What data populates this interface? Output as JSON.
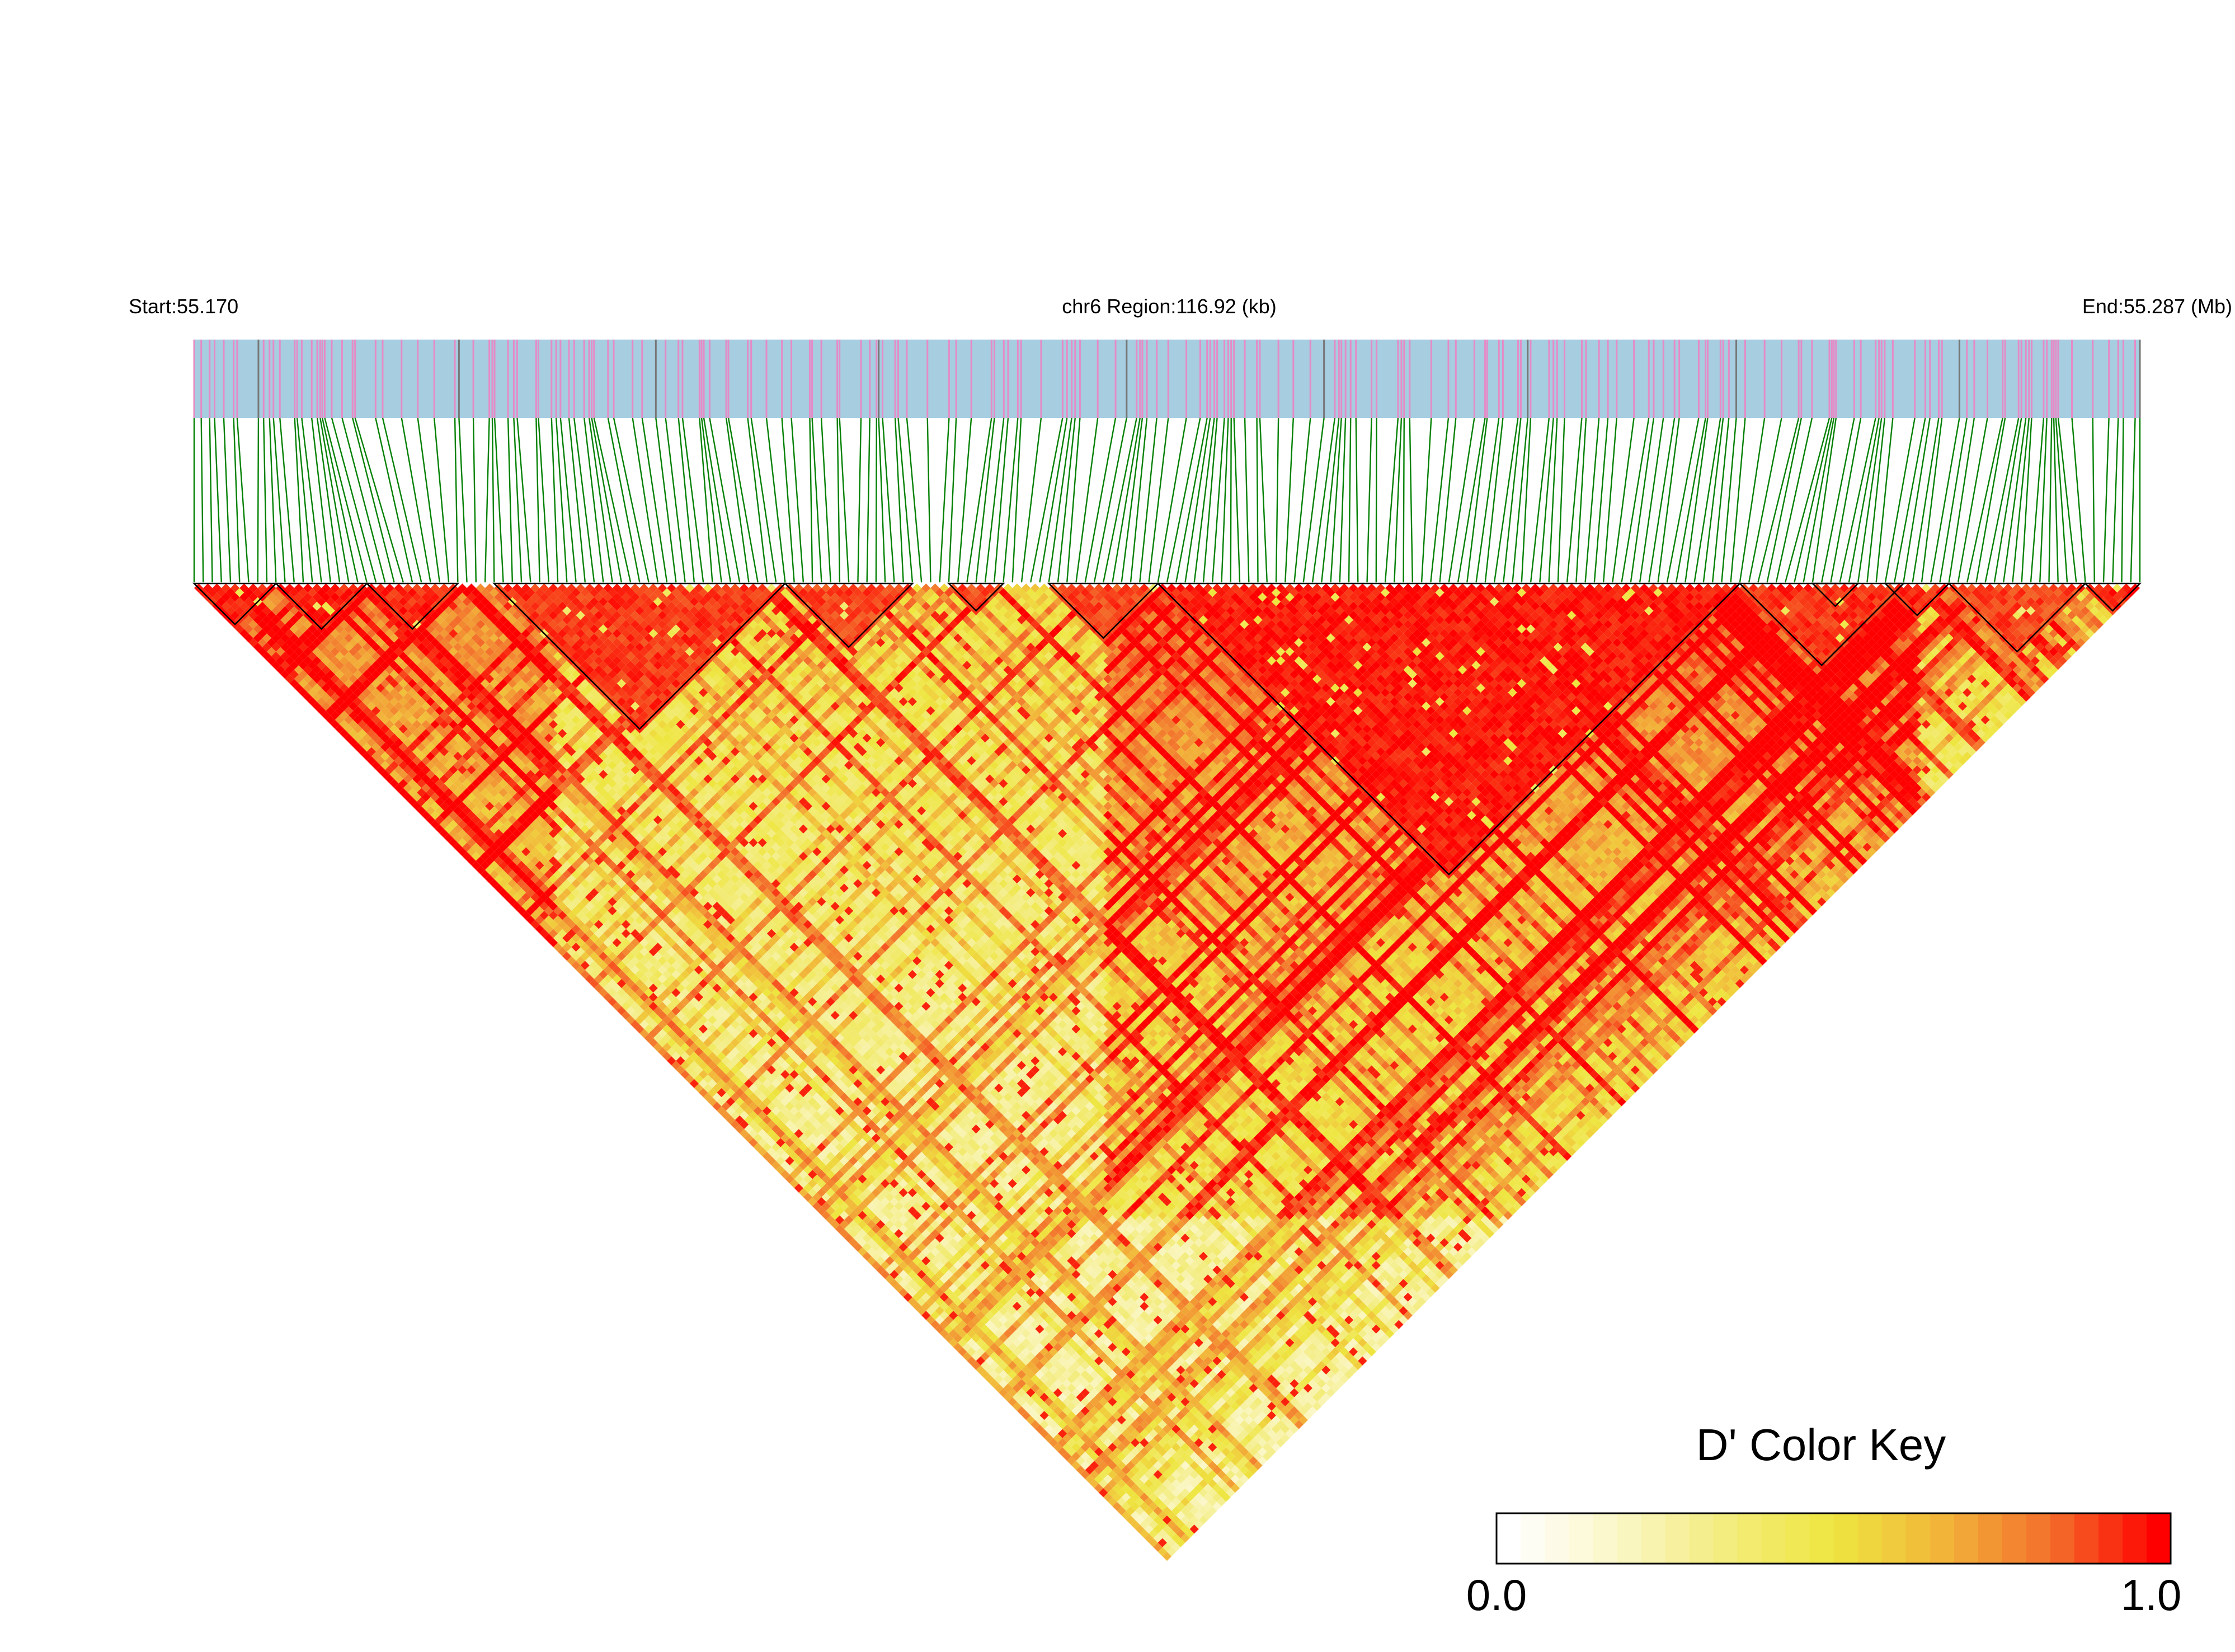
{
  "header": {
    "start_label": "Start:55.170",
    "region_label": "chr6 Region:116.92 (kb)",
    "end_label": "End:55.287 (Mb)"
  },
  "legend": {
    "title": "D' Color Key",
    "min_label": "0.0",
    "max_label": "1.0"
  },
  "colors": {
    "track_background": "#a6cde0",
    "snp_mark": "#e58bc6",
    "snp_mark_dark": "#777777",
    "connector_line": "#008000",
    "high_ld": "#ff0000",
    "mid_ld": "#eee640",
    "low_ld": "#ffffff",
    "block_outline": "#000000"
  },
  "chart_data": {
    "type": "heatmap",
    "title": "",
    "chromosome": "chr6",
    "region_start_mb": 55.17,
    "region_end_mb": 55.287,
    "region_length_kb": 116.92,
    "n_snps": 215,
    "metric": "D'",
    "color_scale": {
      "min": 0.0,
      "max": 1.0,
      "stops": [
        "#ffffff",
        "#fbf7c8",
        "#f3ec7e",
        "#eee640",
        "#f2b53a",
        "#f3702c",
        "#ff0000"
      ]
    },
    "ld_blocks": [
      {
        "first_snp": 0,
        "last_snp": 9,
        "mean_dprime": 0.97
      },
      {
        "first_snp": 9,
        "last_snp": 19,
        "mean_dprime": 0.96
      },
      {
        "first_snp": 19,
        "last_snp": 29,
        "mean_dprime": 0.95
      },
      {
        "first_snp": 33,
        "last_snp": 65,
        "mean_dprime": 0.92
      },
      {
        "first_snp": 65,
        "last_snp": 79,
        "mean_dprime": 0.9
      },
      {
        "first_snp": 83,
        "last_snp": 89,
        "mean_dprime": 0.9
      },
      {
        "first_snp": 94,
        "last_snp": 106,
        "mean_dprime": 0.9
      },
      {
        "first_snp": 106,
        "last_snp": 170,
        "mean_dprime": 0.97
      },
      {
        "first_snp": 170,
        "last_snp": 188,
        "mean_dprime": 0.93
      },
      {
        "first_snp": 178,
        "last_snp": 183,
        "mean_dprime": 0.92
      },
      {
        "first_snp": 186,
        "last_snp": 193,
        "mean_dprime": 0.95
      },
      {
        "first_snp": 193,
        "last_snp": 208,
        "mean_dprime": 0.9
      },
      {
        "first_snp": 208,
        "last_snp": 214,
        "mean_dprime": 0.95
      }
    ]
  }
}
